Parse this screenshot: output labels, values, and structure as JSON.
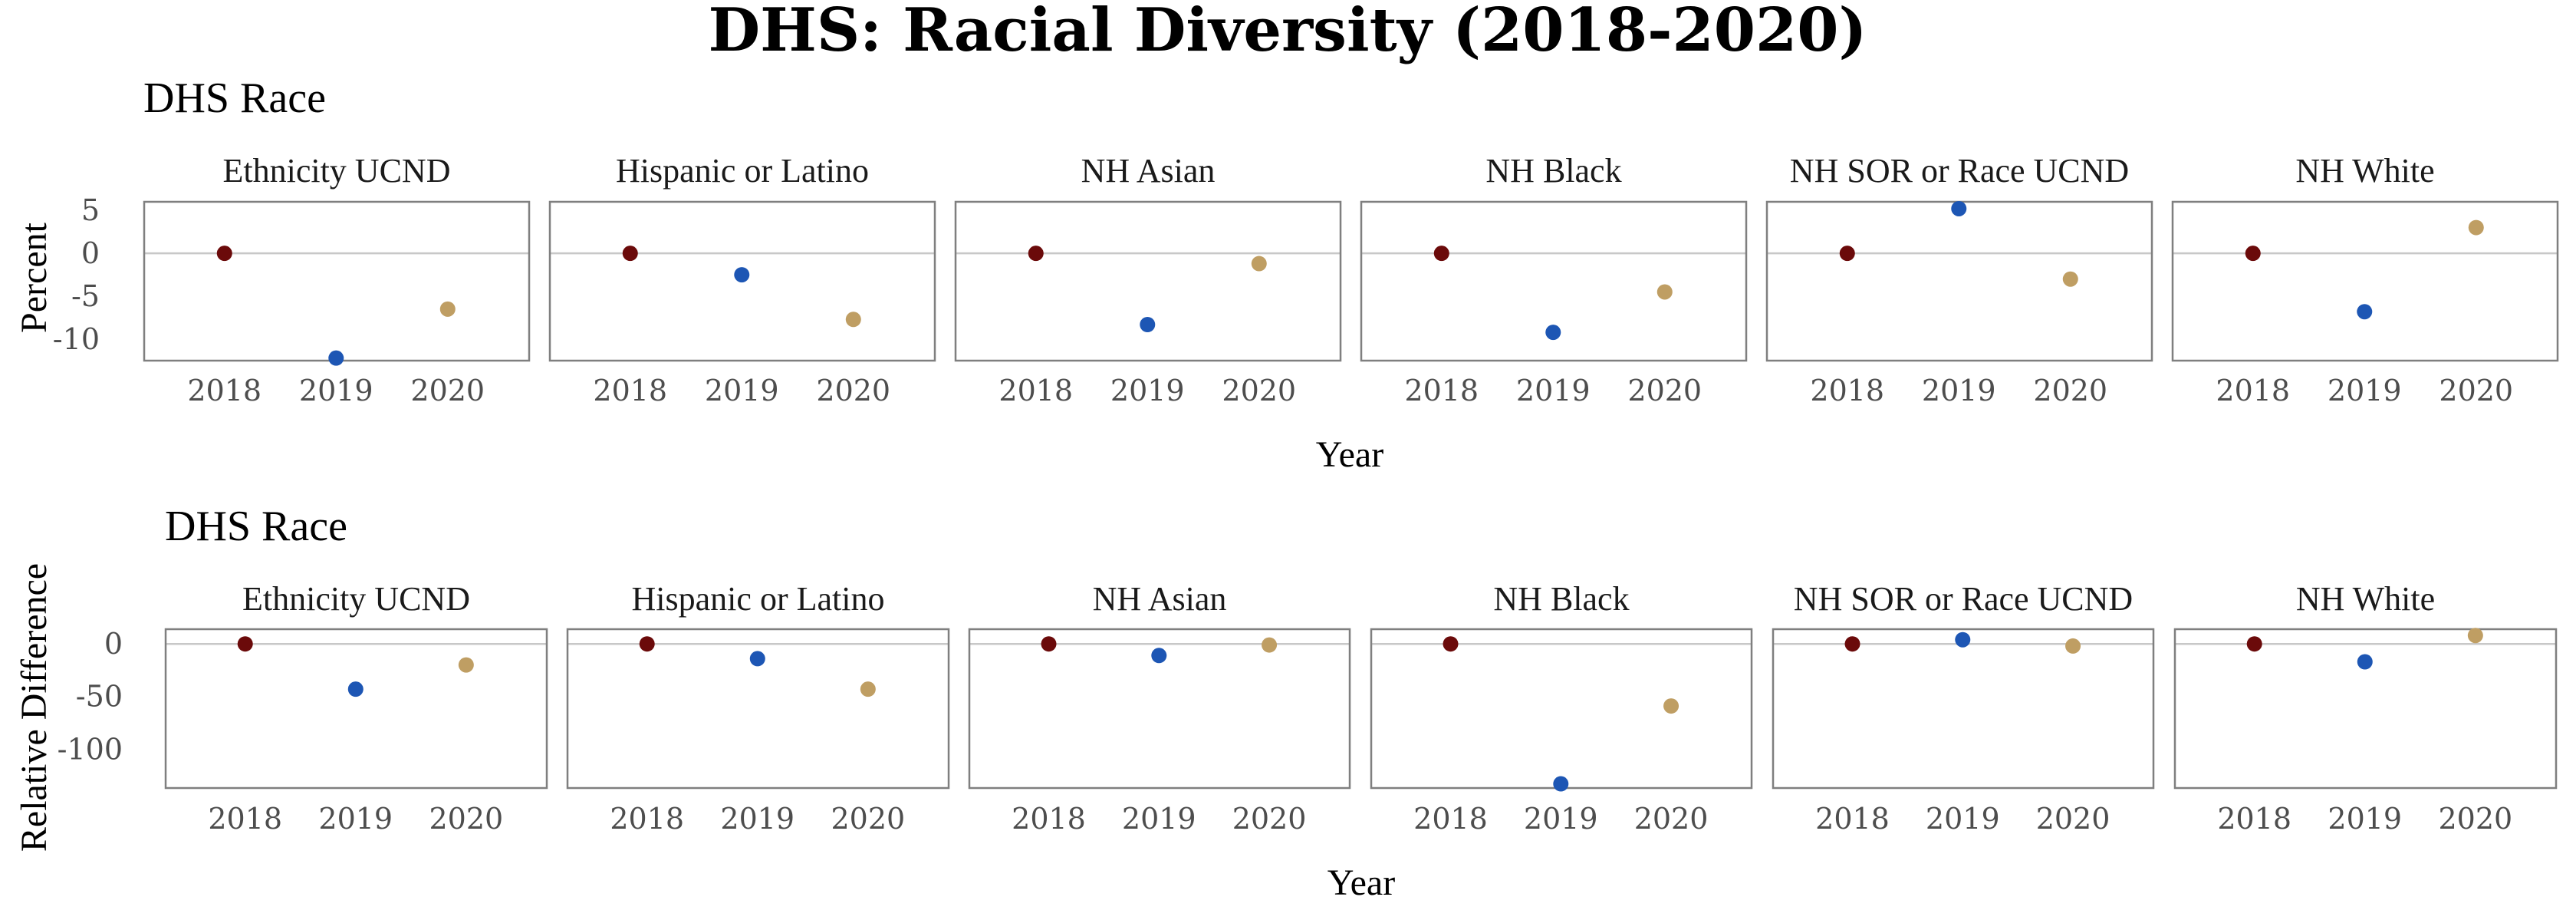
{
  "title": "DHS: Racial Diversity (2018-2020)",
  "year_colors": {
    "2018": "#6b0a0a",
    "2019": "#1d56b4",
    "2020": "#bf9e63"
  },
  "chart_data": [
    {
      "type": "scatter",
      "subtitle": "DHS Race",
      "xlabel": "Year",
      "ylabel": "Percent",
      "x": [
        "2018",
        "2019",
        "2020"
      ],
      "yticks": [
        5,
        0,
        -5,
        -10
      ],
      "ylim": [
        -12.5,
        6
      ],
      "zero_line": true,
      "facets": [
        {
          "label": "Ethnicity UCND",
          "values": [
            0,
            -12.2,
            -6.5
          ]
        },
        {
          "label": "Hispanic or Latino",
          "values": [
            0,
            -2.5,
            -7.7
          ]
        },
        {
          "label": "NH Asian",
          "values": [
            0,
            -8.3,
            -1.2
          ]
        },
        {
          "label": "NH Black",
          "values": [
            0,
            -9.2,
            -4.5
          ]
        },
        {
          "label": "NH SOR or Race UCND",
          "values": [
            0,
            5.2,
            -3.0
          ]
        },
        {
          "label": "NH White",
          "values": [
            0,
            -6.8,
            3.0
          ]
        }
      ]
    },
    {
      "type": "scatter",
      "subtitle": "DHS Race",
      "xlabel": "Year",
      "ylabel": "Relative Difference",
      "x": [
        "2018",
        "2019",
        "2020"
      ],
      "yticks": [
        0,
        -50,
        -100
      ],
      "ylim": [
        -137,
        14
      ],
      "zero_line": true,
      "facets": [
        {
          "label": "Ethnicity UCND",
          "values": [
            0,
            -43,
            -20
          ]
        },
        {
          "label": "Hispanic or Latino",
          "values": [
            0,
            -14,
            -43
          ]
        },
        {
          "label": "NH Asian",
          "values": [
            0,
            -11,
            -1
          ]
        },
        {
          "label": "NH Black",
          "values": [
            0,
            -133,
            -59
          ]
        },
        {
          "label": "NH SOR or Race UCND",
          "values": [
            0,
            4,
            -2
          ]
        },
        {
          "label": "NH White",
          "values": [
            0,
            -17,
            8
          ]
        }
      ]
    }
  ]
}
